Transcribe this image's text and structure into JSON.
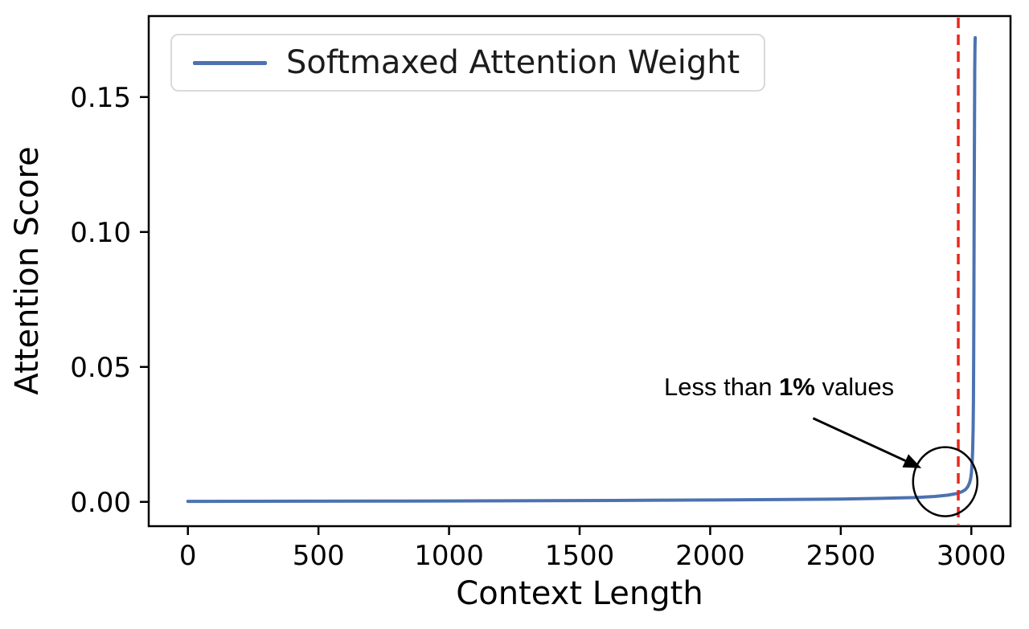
{
  "figure": {
    "background": "#ffffff"
  },
  "chart_data": {
    "type": "line",
    "title": "",
    "xlabel": "Context Length",
    "ylabel": "Attention Score",
    "xlim": [
      -150,
      3150
    ],
    "ylim": [
      -0.009,
      0.18
    ],
    "grid": false,
    "xticks": [
      0,
      500,
      1000,
      1500,
      2000,
      2500,
      3000
    ],
    "xtick_labels": [
      "0",
      "500",
      "1000",
      "1500",
      "2000",
      "2500",
      "3000"
    ],
    "yticks": [
      0,
      0.05,
      0.1,
      0.15
    ],
    "ytick_labels": [
      "0.00",
      "0.05",
      "0.10",
      "0.15"
    ],
    "legend": {
      "position": "upper-left",
      "entries": [
        {
          "label": "Softmaxed Attention Weight",
          "color": "#4C72B0"
        }
      ]
    },
    "series": [
      {
        "name": "Softmaxed Attention Weight",
        "color": "#4C72B0",
        "line_width": 4,
        "points": [
          [
            0,
            0.0002
          ],
          [
            250,
            0.00023
          ],
          [
            500,
            0.00026
          ],
          [
            750,
            0.0003
          ],
          [
            1000,
            0.00035
          ],
          [
            1250,
            0.0004
          ],
          [
            1500,
            0.00048
          ],
          [
            1750,
            0.00058
          ],
          [
            2000,
            0.0007
          ],
          [
            2250,
            0.00085
          ],
          [
            2500,
            0.00105
          ],
          [
            2650,
            0.0013
          ],
          [
            2780,
            0.0016
          ],
          [
            2860,
            0.002
          ],
          [
            2910,
            0.0025
          ],
          [
            2945,
            0.0031
          ],
          [
            2965,
            0.0038
          ],
          [
            2978,
            0.0046
          ],
          [
            2987,
            0.0057
          ],
          [
            2993,
            0.007
          ],
          [
            2997,
            0.0085
          ],
          [
            3000,
            0.0105
          ],
          [
            3003,
            0.014
          ],
          [
            3005,
            0.019
          ],
          [
            3007,
            0.027
          ],
          [
            3008,
            0.038
          ],
          [
            3009,
            0.055
          ],
          [
            3010,
            0.08
          ],
          [
            3011,
            0.11
          ],
          [
            3012,
            0.14
          ],
          [
            3013,
            0.16
          ],
          [
            3014,
            0.169
          ],
          [
            3015,
            0.172
          ]
        ]
      }
    ],
    "vline": {
      "x": 2950,
      "color": "#E8291C",
      "style": "dashed",
      "line_width": 3.5
    },
    "annotation": {
      "text_prefix": "Less than ",
      "text_bold": "1%",
      "text_suffix": " values",
      "arrow": {
        "from_xy": [
          2394,
          0.031
        ],
        "to_xy": [
          2809,
          0.0125
        ],
        "color": "#000000"
      },
      "circle": {
        "center_xy": [
          2900,
          0.0075
        ],
        "radius_px": [
          40,
          43
        ],
        "color": "#000000"
      }
    }
  }
}
